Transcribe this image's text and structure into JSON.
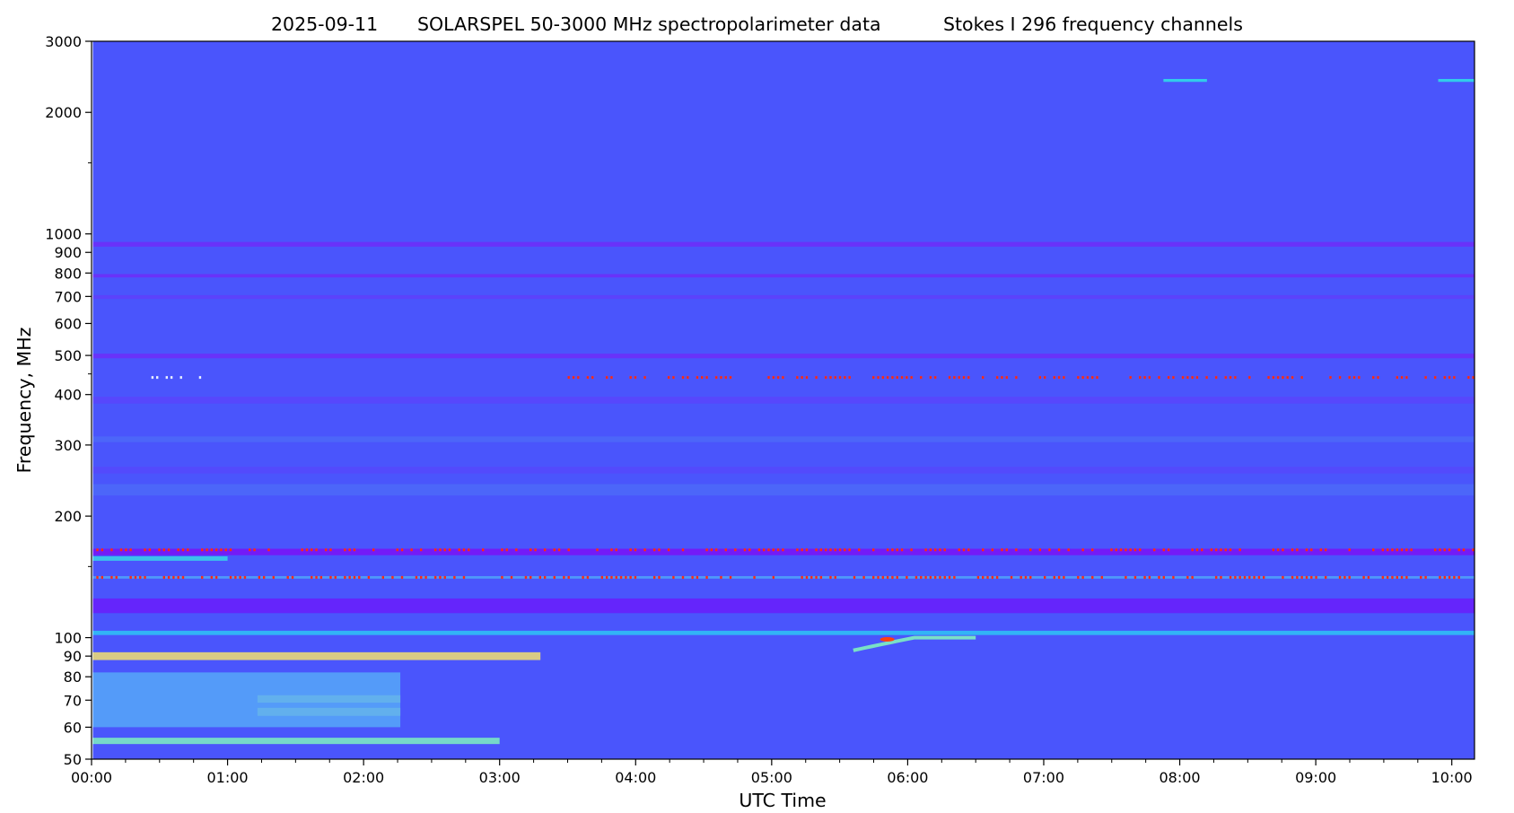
{
  "chart_data": {
    "type": "heatmap",
    "title_parts": [
      "2025-09-11",
      "SOLARSPEL   50-3000 MHz spectropolarimeter data",
      "Stokes I   296 frequency channels"
    ],
    "xlabel": "UTC Time",
    "ylabel": "Frequency, MHz",
    "xlim_hours": [
      0.0,
      10.167
    ],
    "ylim": [
      50,
      3000
    ],
    "y_scale": "log",
    "data_start_hours": 0.01,
    "x_tick_labels": [
      "00:00",
      "01:00",
      "02:00",
      "03:00",
      "04:00",
      "05:00",
      "06:00",
      "07:00",
      "08:00",
      "09:00",
      "10:00"
    ],
    "y_tick_values": [
      50,
      60,
      70,
      80,
      90,
      100,
      200,
      300,
      400,
      500,
      600,
      700,
      800,
      900,
      1000,
      2000,
      3000
    ],
    "y_tick_labels": [
      "50",
      "60",
      "70",
      "80",
      "90",
      "100",
      "200",
      "300",
      "400",
      "500",
      "600",
      "700",
      "800",
      "900",
      "1000",
      "2000",
      "3000"
    ],
    "y_minor_ticks": [
      150,
      450,
      1500
    ],
    "colormap": "rainbow",
    "background_color": "#4a55fc",
    "features": [
      {
        "kind": "band",
        "f_lo": 88,
        "f_hi": 92,
        "t0": 0.0,
        "t1": 3.3,
        "color": "#f2e070"
      },
      {
        "kind": "band",
        "f_lo": 54.5,
        "f_hi": 56.5,
        "t0": 0.0,
        "t1": 3.0,
        "color": "#7ef0c0"
      },
      {
        "kind": "band",
        "f_lo": 64,
        "f_hi": 67,
        "t0": 1.22,
        "t1": 2.27,
        "color": "#b5f5a0"
      },
      {
        "kind": "band",
        "f_lo": 69,
        "f_hi": 72,
        "t0": 1.22,
        "t1": 2.27,
        "color": "#b5f5a0"
      },
      {
        "kind": "band",
        "f_lo": 60,
        "f_hi": 82,
        "t0": 0.0,
        "t1": 2.27,
        "color": "#56a8f8"
      },
      {
        "kind": "band",
        "f_lo": 101.5,
        "f_hi": 104,
        "t0": 0.0,
        "t1": 10.167,
        "color": "#2ec6f4"
      },
      {
        "kind": "band",
        "f_lo": 115,
        "f_hi": 125,
        "t0": 0.0,
        "t1": 10.167,
        "color": "#6a1dfa"
      },
      {
        "kind": "band",
        "f_lo": 160,
        "f_hi": 166,
        "t0": 0.0,
        "t1": 10.167,
        "color": "#7a12f6"
      },
      {
        "kind": "band",
        "f_lo": 155,
        "f_hi": 159,
        "t0": 0.0,
        "t1": 1.0,
        "color": "#3ad2e8"
      },
      {
        "kind": "band",
        "f_lo": 140,
        "f_hi": 142,
        "t0": 0.0,
        "t1": 10.167,
        "color": "#4fa6f8"
      },
      {
        "kind": "band",
        "f_lo": 930,
        "f_hi": 955,
        "t0": 0.0,
        "t1": 10.167,
        "color": "#6f2df8"
      },
      {
        "kind": "band",
        "f_lo": 780,
        "f_hi": 795,
        "t0": 0.0,
        "t1": 10.167,
        "color": "#6f2df8"
      },
      {
        "kind": "band",
        "f_lo": 492,
        "f_hi": 505,
        "t0": 0.0,
        "t1": 10.167,
        "color": "#6f2df8"
      },
      {
        "kind": "band",
        "f_lo": 690,
        "f_hi": 705,
        "t0": 0.0,
        "t1": 10.167,
        "color": "#5f3ffa"
      },
      {
        "kind": "band",
        "f_lo": 380,
        "f_hi": 395,
        "t0": 0.0,
        "t1": 10.167,
        "color": "#5945fb"
      },
      {
        "kind": "band",
        "f_lo": 255,
        "f_hi": 265,
        "t0": 0.0,
        "t1": 10.167,
        "color": "#5549fb"
      },
      {
        "kind": "band",
        "f_lo": 225,
        "f_hi": 240,
        "t0": 0.0,
        "t1": 10.167,
        "color": "#4c6af8"
      },
      {
        "kind": "band",
        "f_lo": 305,
        "f_hi": 315,
        "t0": 0.0,
        "t1": 10.167,
        "color": "#4c6af8"
      },
      {
        "kind": "band",
        "f_lo": 2380,
        "f_hi": 2420,
        "t0": 9.9,
        "t1": 10.167,
        "color": "#2ee0e8"
      },
      {
        "kind": "band",
        "f_lo": 2380,
        "f_hi": 2420,
        "t0": 7.88,
        "t1": 8.2,
        "color": "#2ee0e8"
      },
      {
        "kind": "dots",
        "freq": 165,
        "t0": 0.0,
        "t1": 10.167,
        "color": "#ff2a10"
      },
      {
        "kind": "dots",
        "freq": 441,
        "t0": 3.5,
        "t1": 10.167,
        "color": "#ff2a10"
      },
      {
        "kind": "dots",
        "freq": 141,
        "t0": 0.0,
        "t1": 10.167,
        "color": "#ff2a10"
      },
      {
        "kind": "dots",
        "freq": 441,
        "t0": 0.3,
        "t1": 0.8,
        "color": "#e8f0ff"
      }
    ],
    "burst": {
      "t0": 5.6,
      "t1": 6.5,
      "f_start": 93,
      "f_end": 100,
      "color": "#ff4010"
    }
  }
}
